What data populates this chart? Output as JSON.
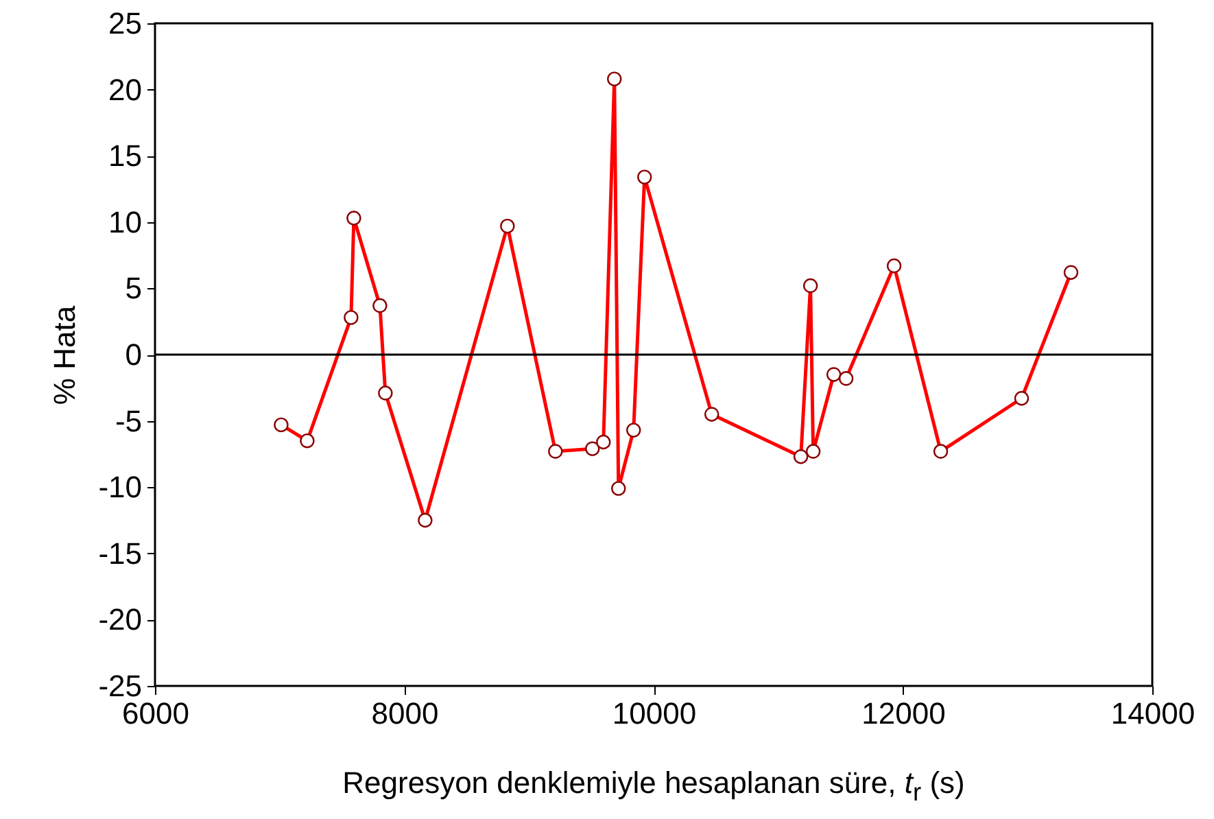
{
  "chart_data": {
    "type": "line",
    "xlabel": "Regresyon denklemiyle hesaplanan süre,  t$_{r}$ (s)",
    "ylabel": "% Hata",
    "xlim": [
      6000,
      14000
    ],
    "xticks": [
      6000,
      8000,
      10000,
      12000,
      14000
    ],
    "ylim": [
      -25,
      25
    ],
    "yticks": [
      -25,
      -20,
      -15,
      -10,
      -5,
      0,
      5,
      10,
      15,
      20,
      25
    ],
    "grid": false,
    "marker": "circle",
    "line_style": "solid",
    "x": [
      7012,
      7221,
      7573,
      7595,
      7804,
      7848,
      8167,
      8827,
      9212,
      9509,
      9597,
      9685,
      9718,
      9839,
      9927,
      10466,
      11181,
      11258,
      11280,
      11445,
      11544,
      11929,
      12303,
      12952,
      13348
    ],
    "series": [
      {
        "color": "#ff0000",
        "values": [
          -5.3,
          -6.5,
          2.8,
          10.3,
          3.7,
          -2.9,
          -12.5,
          9.7,
          -7.3,
          -7.1,
          -6.6,
          20.8,
          -10.1,
          -5.7,
          13.4,
          -4.5,
          -7.7,
          5.2,
          -7.3,
          -1.5,
          -1.8,
          6.7,
          -7.3,
          -3.3,
          6.2
        ]
      }
    ],
    "ref_lines": [
      {
        "axis": "y",
        "value": 0,
        "color": "#000000",
        "line_style": "solid"
      }
    ]
  }
}
